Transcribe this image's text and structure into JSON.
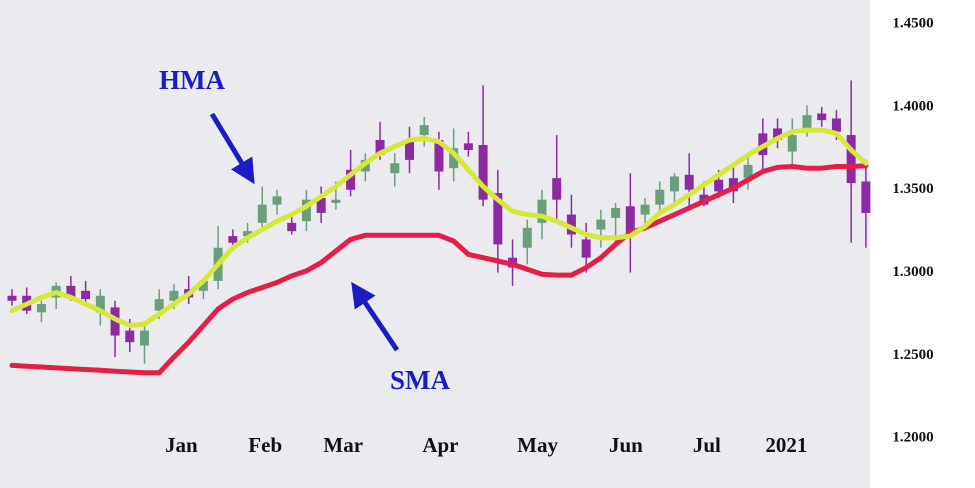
{
  "chart_data": {
    "type": "candlestick",
    "xlim": [
      -0.815,
      58.28
    ],
    "xticks": [
      {
        "value": 11.5,
        "label": "Jan"
      },
      {
        "value": 17.2,
        "label": "Feb"
      },
      {
        "value": 22.5,
        "label": "Mar"
      },
      {
        "value": 29.1,
        "label": "Apr"
      },
      {
        "value": 35.7,
        "label": "May"
      },
      {
        "value": 41.7,
        "label": "Jun"
      },
      {
        "value": 47.2,
        "label": "Jul"
      },
      {
        "value": 52.6,
        "label": "2021"
      }
    ],
    "ylim": [
      1.17,
      1.4645
    ],
    "yticks": [
      {
        "value": 1.2,
        "label": "1.2000"
      },
      {
        "value": 1.25,
        "label": "1.2500"
      },
      {
        "value": 1.3,
        "label": "1.3000"
      },
      {
        "value": 1.35,
        "label": "1.3500"
      },
      {
        "value": 1.4,
        "label": "1.4000"
      },
      {
        "value": 1.45,
        "label": "1.4500"
      }
    ],
    "up_color": "#6b9f7c",
    "down_color": "#8c2aa4",
    "candles": {
      "open": [
        1.286,
        1.286,
        1.276,
        1.285,
        1.292,
        1.289,
        1.276,
        1.279,
        1.265,
        1.256,
        1.277,
        1.283,
        1.29,
        1.289,
        1.295,
        1.322,
        1.322,
        1.33,
        1.341,
        1.33,
        1.331,
        1.345,
        1.342,
        1.362,
        1.361,
        1.38,
        1.36,
        1.38,
        1.383,
        1.38,
        1.363,
        1.378,
        1.377,
        1.348,
        1.309,
        1.315,
        1.33,
        1.357,
        1.335,
        1.32,
        1.326,
        1.333,
        1.34,
        1.335,
        1.341,
        1.349,
        1.359,
        1.347,
        1.356,
        1.357,
        1.357,
        1.384,
        1.387,
        1.373,
        1.387,
        1.396,
        1.393,
        1.383,
        1.355
      ],
      "high": [
        1.29,
        1.291,
        1.283,
        1.294,
        1.298,
        1.295,
        1.29,
        1.283,
        1.272,
        1.27,
        1.29,
        1.293,
        1.298,
        1.297,
        1.328,
        1.326,
        1.33,
        1.352,
        1.35,
        1.336,
        1.35,
        1.352,
        1.355,
        1.374,
        1.372,
        1.391,
        1.372,
        1.388,
        1.394,
        1.385,
        1.387,
        1.385,
        1.413,
        1.362,
        1.32,
        1.332,
        1.35,
        1.383,
        1.347,
        1.33,
        1.338,
        1.342,
        1.36,
        1.345,
        1.355,
        1.36,
        1.372,
        1.355,
        1.362,
        1.365,
        1.37,
        1.393,
        1.393,
        1.393,
        1.401,
        1.4,
        1.398,
        1.416,
        1.368
      ],
      "low": [
        1.28,
        1.275,
        1.27,
        1.278,
        1.283,
        1.281,
        1.268,
        1.249,
        1.252,
        1.245,
        1.272,
        1.278,
        1.281,
        1.284,
        1.29,
        1.316,
        1.318,
        1.326,
        1.335,
        1.323,
        1.325,
        1.33,
        1.338,
        1.346,
        1.355,
        1.368,
        1.352,
        1.36,
        1.376,
        1.35,
        1.355,
        1.37,
        1.34,
        1.3,
        1.292,
        1.305,
        1.32,
        1.33,
        1.315,
        1.3,
        1.315,
        1.318,
        1.3,
        1.325,
        1.335,
        1.34,
        1.34,
        1.34,
        1.345,
        1.342,
        1.35,
        1.36,
        1.375,
        1.365,
        1.382,
        1.388,
        1.38,
        1.318,
        1.315
      ],
      "close": [
        1.283,
        1.277,
        1.281,
        1.292,
        1.285,
        1.284,
        1.286,
        1.262,
        1.258,
        1.265,
        1.284,
        1.289,
        1.285,
        1.295,
        1.315,
        1.318,
        1.325,
        1.341,
        1.346,
        1.325,
        1.344,
        1.336,
        1.344,
        1.35,
        1.368,
        1.371,
        1.366,
        1.368,
        1.389,
        1.361,
        1.375,
        1.374,
        1.344,
        1.317,
        1.303,
        1.327,
        1.344,
        1.344,
        1.323,
        1.309,
        1.332,
        1.339,
        1.322,
        1.341,
        1.35,
        1.358,
        1.35,
        1.341,
        1.349,
        1.349,
        1.365,
        1.371,
        1.38,
        1.383,
        1.395,
        1.392,
        1.385,
        1.354,
        1.336
      ]
    },
    "series": [
      {
        "name": "HMA",
        "color": "#d6e83a",
        "values": [
          1.277,
          1.281,
          1.285,
          1.288,
          1.285,
          1.281,
          1.277,
          1.272,
          1.268,
          1.269,
          1.275,
          1.281,
          1.287,
          1.295,
          1.305,
          1.315,
          1.321,
          1.326,
          1.331,
          1.335,
          1.34,
          1.346,
          1.352,
          1.359,
          1.366,
          1.372,
          1.376,
          1.38,
          1.381,
          1.379,
          1.372,
          1.362,
          1.352,
          1.344,
          1.337,
          1.335,
          1.334,
          1.331,
          1.327,
          1.323,
          1.321,
          1.321,
          1.322,
          1.328,
          1.336,
          1.341,
          1.347,
          1.353,
          1.359,
          1.365,
          1.371,
          1.376,
          1.381,
          1.385,
          1.386,
          1.386,
          1.384,
          1.374,
          1.366
        ]
      },
      {
        "name": "SMA",
        "color": "#e41e4a",
        "values": [
          1.244,
          1.2435,
          1.243,
          1.2425,
          1.242,
          1.2415,
          1.241,
          1.2405,
          1.24,
          1.2395,
          1.2395,
          1.249,
          1.258,
          1.268,
          1.278,
          1.284,
          1.288,
          1.291,
          1.294,
          1.298,
          1.301,
          1.306,
          1.313,
          1.32,
          1.3225,
          1.3225,
          1.3225,
          1.3225,
          1.3225,
          1.3225,
          1.319,
          1.311,
          1.309,
          1.307,
          1.305,
          1.302,
          1.299,
          1.2985,
          1.2985,
          1.303,
          1.309,
          1.317,
          1.324,
          1.327,
          1.331,
          1.335,
          1.339,
          1.343,
          1.347,
          1.351,
          1.356,
          1.361,
          1.3635,
          1.364,
          1.363,
          1.363,
          1.364,
          1.364,
          1.3645
        ]
      }
    ]
  }
}
